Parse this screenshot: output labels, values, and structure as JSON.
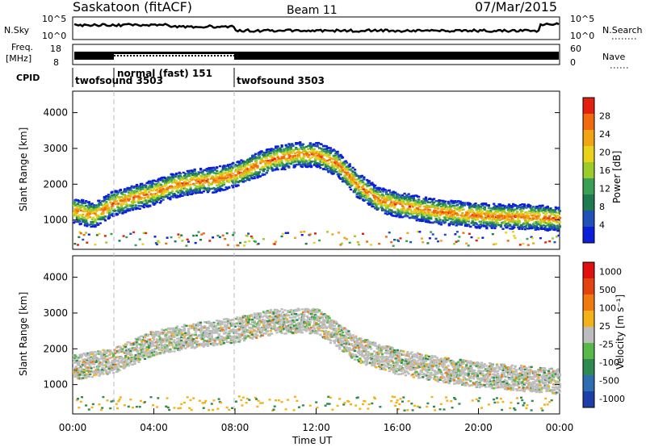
{
  "header": {
    "station": "Saskatoon (fitACF)",
    "beam": "Beam 11",
    "date": "07/Mar/2015"
  },
  "top_panels": {
    "nsky_label": "N.Sky",
    "nsky_ticks": [
      "10^5",
      "10^0"
    ],
    "nsearch_label": "N.Search",
    "nsearch_ticks": [
      "10^5",
      "10^0"
    ],
    "freq_label": "Freq.",
    "freq_unit": "[MHz]",
    "freq_ticks": [
      "18",
      "8"
    ],
    "nave_label": "Nave",
    "nave_ticks": [
      "60",
      "0"
    ],
    "cpid_label": "CPID",
    "cpid_segments": [
      {
        "label": "twofsound 3503",
        "start_hour": 0,
        "end_hour": 2
      },
      {
        "label": "normal (fast) 151",
        "start_hour": 2,
        "end_hour": 8
      },
      {
        "label": "twofsound 3503",
        "start_hour": 8,
        "end_hour": 24
      }
    ]
  },
  "chart_data": [
    {
      "type": "heatmap",
      "title": "Power",
      "ylabel": "Slant Range [km]",
      "xlabel": "Time UT",
      "xlim": [
        0,
        24
      ],
      "ylim": [
        180,
        4600
      ],
      "yticks": [
        1000,
        2000,
        3000,
        4000
      ],
      "colorbar_label": "Power [dB]",
      "colorbar_ticks": [
        "4",
        "8",
        "12",
        "16",
        "20",
        "24",
        "28"
      ],
      "colors": [
        "#0b1ed8",
        "#2050b8",
        "#1f7a4f",
        "#3aa055",
        "#9ccc2a",
        "#e8d21a",
        "#f2a514",
        "#ef6b0e",
        "#e22010"
      ],
      "band_center_km": [
        [
          0,
          1300
        ],
        [
          1,
          1150
        ],
        [
          2,
          1500
        ],
        [
          3,
          1650
        ],
        [
          4,
          1800
        ],
        [
          5,
          2000
        ],
        [
          6,
          2100
        ],
        [
          7,
          2150
        ],
        [
          8,
          2300
        ],
        [
          9,
          2550
        ],
        [
          10,
          2750
        ],
        [
          11,
          2850
        ],
        [
          12,
          2850
        ],
        [
          13,
          2600
        ],
        [
          14,
          2000
        ],
        [
          15,
          1600
        ],
        [
          16,
          1450
        ],
        [
          17,
          1350
        ],
        [
          18,
          1250
        ],
        [
          19,
          1200
        ],
        [
          20,
          1150
        ],
        [
          21,
          1120
        ],
        [
          22,
          1120
        ],
        [
          23,
          1100
        ],
        [
          24,
          1050
        ]
      ]
    },
    {
      "type": "heatmap",
      "title": "Velocity",
      "ylabel": "Slant Range [km]",
      "xlabel": "Time UT",
      "xlim": [
        0,
        24
      ],
      "ylim": [
        180,
        4600
      ],
      "yticks": [
        1000,
        2000,
        3000,
        4000
      ],
      "xticks": [
        "00:00",
        "04:00",
        "08:00",
        "12:00",
        "16:00",
        "20:00",
        "00:00"
      ],
      "colorbar_label": "Velocity [m s⁻¹]",
      "colorbar_ticks": [
        "1000",
        "500",
        "100",
        "25",
        "-25",
        "-100",
        "-500",
        "-1000"
      ],
      "colors": [
        "#1f3fa8",
        "#2e6db0",
        "#2f8a52",
        "#59b84a",
        "#bdbdbd",
        "#f4b21a",
        "#f07a10",
        "#e24410",
        "#e01010"
      ],
      "band_center_km": [
        [
          0,
          1500
        ],
        [
          2,
          1700
        ],
        [
          4,
          2200
        ],
        [
          6,
          2400
        ],
        [
          8,
          2550
        ],
        [
          10,
          2800
        ],
        [
          12,
          2800
        ],
        [
          13,
          2400
        ],
        [
          14,
          2000
        ],
        [
          16,
          1650
        ],
        [
          18,
          1450
        ],
        [
          20,
          1300
        ],
        [
          22,
          1200
        ],
        [
          24,
          1100
        ]
      ]
    }
  ]
}
